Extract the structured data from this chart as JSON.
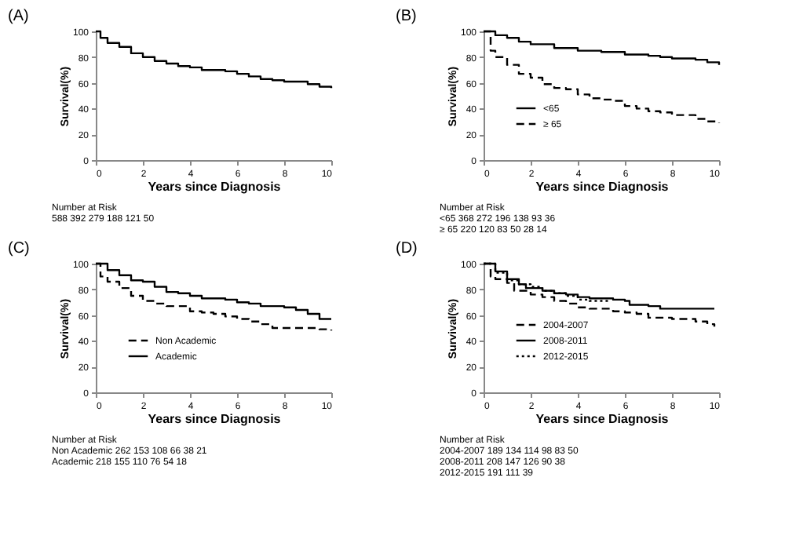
{
  "chart_data": [
    {
      "type": "step",
      "title": "(A)",
      "xlabel": "Years since Diagnosis",
      "ylabel": "Survival(%)",
      "xlim": [
        0,
        10
      ],
      "xticks": [
        0,
        2,
        4,
        6,
        8,
        10
      ],
      "ylim": [
        0,
        100
      ],
      "yticks": [
        0,
        20,
        40,
        60,
        80,
        100
      ],
      "grid": false,
      "legend": false,
      "x": [
        0,
        0.2,
        0.5,
        1,
        1.5,
        2,
        2.5,
        3,
        3.5,
        4,
        4.5,
        5,
        5.5,
        6,
        6.5,
        7,
        7.5,
        8,
        8.5,
        9,
        9.5,
        10
      ],
      "series": [
        {
          "color": "#000000",
          "line_style": "solid",
          "values": [
            100,
            95,
            91,
            88,
            83,
            80,
            77,
            75,
            73,
            72,
            70,
            70,
            69,
            67,
            65,
            63,
            62,
            61,
            61,
            59,
            57,
            56
          ]
        }
      ],
      "annotations": [
        "Number at Risk",
        "588 392 279 188 121 50"
      ]
    },
    {
      "type": "step",
      "title": "(B)",
      "xlabel": "Years since Diagnosis",
      "ylabel": "Survival(%)",
      "xlim": [
        0,
        10
      ],
      "xticks": [
        0,
        2,
        4,
        6,
        8,
        10
      ],
      "ylim": [
        0,
        100
      ],
      "yticks": [
        0,
        20,
        40,
        60,
        80,
        100
      ],
      "grid": false,
      "legend": "bottom left",
      "series": [
        {
          "name": "<65",
          "color": "#000000",
          "line_style": "solid",
          "x": [
            0,
            0.5,
            1,
            1.5,
            2,
            3,
            4,
            5,
            5.5,
            6,
            7,
            7.5,
            8,
            9,
            9.5,
            10
          ],
          "values": [
            100,
            97,
            95,
            92,
            90,
            87,
            85,
            84,
            84,
            82,
            81,
            80,
            79,
            78,
            76,
            74
          ]
        },
        {
          "name": "≥ 65",
          "color": "#000000",
          "line_style": "dashed",
          "x": [
            0,
            0.3,
            0.5,
            1,
            1.5,
            2,
            2.5,
            3,
            3.5,
            4,
            4.5,
            5,
            5.5,
            6,
            6.5,
            7,
            7.5,
            8,
            8.5,
            9,
            9.5,
            10
          ],
          "values": [
            100,
            85,
            80,
            74,
            67,
            64,
            59,
            56,
            55,
            51,
            48,
            47,
            46,
            42,
            40,
            38,
            37,
            35,
            35,
            32,
            30,
            29
          ]
        }
      ],
      "annotations": [
        "Number at Risk",
        "<65 368 272 196 138 93 36",
        "≥ 65 220 120 83 50 28 14"
      ]
    },
    {
      "type": "step",
      "title": "(C)",
      "xlabel": "Years since Diagnosis",
      "ylabel": "Survival(%)",
      "xlim": [
        0,
        10
      ],
      "xticks": [
        0,
        2,
        4,
        6,
        8,
        10
      ],
      "ylim": [
        0,
        100
      ],
      "yticks": [
        0,
        20,
        40,
        60,
        80,
        100
      ],
      "grid": false,
      "legend": "bottom left",
      "series": [
        {
          "name": "Non Academic",
          "color": "#000000",
          "line_style": "dashed",
          "x": [
            0,
            0.2,
            0.5,
            1,
            1.5,
            2,
            2.5,
            3,
            3.5,
            4,
            4.5,
            5,
            5.5,
            6,
            6.5,
            7,
            7.5,
            8,
            9,
            9.5,
            10
          ],
          "values": [
            100,
            90,
            86,
            81,
            75,
            71,
            69,
            67,
            67,
            63,
            62,
            61,
            59,
            57,
            55,
            53,
            50,
            50,
            50,
            49,
            48
          ]
        },
        {
          "name": "Academic",
          "color": "#000000",
          "line_style": "solid",
          "x": [
            0,
            0.5,
            1,
            1.5,
            2,
            2.5,
            3,
            3.5,
            4,
            4.5,
            5,
            5.5,
            6,
            6.5,
            7,
            7.5,
            8,
            8.5,
            9,
            9.5,
            10
          ],
          "values": [
            100,
            95,
            91,
            87,
            86,
            82,
            78,
            77,
            75,
            73,
            73,
            72,
            70,
            69,
            67,
            67,
            66,
            64,
            61,
            57,
            57
          ]
        }
      ],
      "annotations": [
        "Number at Risk",
        "Non Academic 262 153 108 66 38 21",
        "Academic 218 155 110 76 54 18"
      ]
    },
    {
      "type": "step",
      "title": "(D)",
      "xlabel": "Years since Diagnosis",
      "ylabel": "Survival(%)",
      "xlim": [
        0,
        10
      ],
      "xticks": [
        0,
        2,
        4,
        6,
        8,
        10
      ],
      "ylim": [
        0,
        100
      ],
      "yticks": [
        0,
        20,
        40,
        60,
        80,
        100
      ],
      "grid": false,
      "legend": "bottom left",
      "series": [
        {
          "name": "2004-2007",
          "color": "#000000",
          "line_style": "dashed",
          "x": [
            0,
            0.3,
            0.5,
            1,
            1.3,
            2,
            2.5,
            3,
            3.5,
            4,
            4.5,
            5,
            5.5,
            6,
            6.5,
            7,
            7.5,
            8,
            9,
            9.5,
            9.8
          ],
          "values": [
            100,
            90,
            88,
            85,
            79,
            76,
            74,
            71,
            69,
            66,
            65,
            65,
            63,
            62,
            61,
            58,
            58,
            57,
            55,
            53,
            51
          ]
        },
        {
          "name": "2008-2011",
          "color": "#000000",
          "line_style": "solid",
          "x": [
            0,
            0.5,
            1,
            1.5,
            1.8,
            2,
            2.5,
            3,
            3.5,
            4,
            4.5,
            5,
            5.5,
            6,
            6.2,
            6.5,
            7,
            7.5,
            8,
            9,
            9.8
          ],
          "values": [
            100,
            94,
            88,
            84,
            81,
            81,
            79,
            77,
            76,
            74,
            73,
            73,
            72,
            71,
            68,
            68,
            67,
            65,
            65,
            65,
            65
          ]
        },
        {
          "name": "2012-2015",
          "color": "#000000",
          "line_style": "dotted",
          "x": [
            0,
            0.5,
            1,
            1.5,
            2,
            2.5,
            3,
            3.5,
            3.7,
            4,
            4.5,
            5,
            5.3
          ],
          "values": [
            100,
            93,
            87,
            84,
            82,
            79,
            77,
            75,
            75,
            72,
            71,
            71,
            71
          ]
        }
      ],
      "annotations": [
        "Number at Risk",
        "2004-2007 189 134 114 98 83 50",
        "2008-2011 208 147 126 90 38",
        "2012-2015 191 111 39"
      ]
    }
  ]
}
